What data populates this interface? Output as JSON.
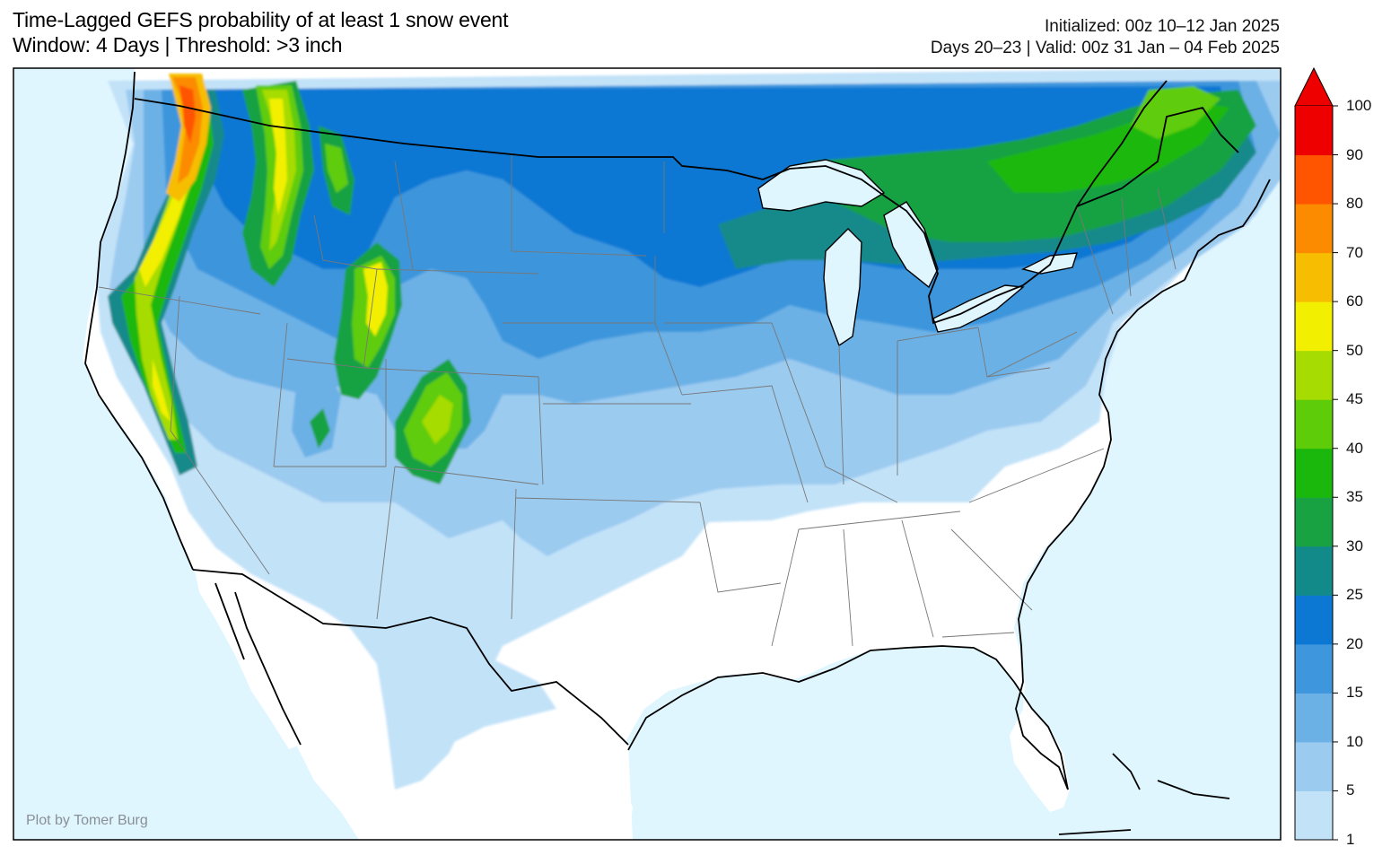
{
  "title": {
    "line1": "Time-Lagged GEFS probability of at least 1 snow event",
    "line2": "Window: 4 Days | Threshold: >3 inch"
  },
  "subtitle": {
    "initialized": "Initialized: 00z 10–12 Jan 2025",
    "valid": "Days 20–23 | Valid: 00z 31 Jan – 04 Feb 2025"
  },
  "credit": "Plot by Tomer Burg",
  "colors": {
    "ocean": "#e0f6ff",
    "land": "#ffffff",
    "boundary": "#000000",
    "state_line": "#777777"
  },
  "colorbar": {
    "ticks": [
      "1",
      "5",
      "10",
      "15",
      "20",
      "25",
      "30",
      "35",
      "40",
      "45",
      "50",
      "60",
      "70",
      "80",
      "90",
      "100"
    ],
    "bins": [
      {
        "range": "1-5",
        "color": "#c2e2f8"
      },
      {
        "range": "5-10",
        "color": "#9ccbf0"
      },
      {
        "range": "10-15",
        "color": "#6cb1e6"
      },
      {
        "range": "15-20",
        "color": "#3e96dc"
      },
      {
        "range": "20-25",
        "color": "#0c78d4"
      },
      {
        "range": "25-30",
        "color": "#128a8a"
      },
      {
        "range": "30-35",
        "color": "#18a242"
      },
      {
        "range": "35-40",
        "color": "#1ab80c"
      },
      {
        "range": "40-45",
        "color": "#5ecc08"
      },
      {
        "range": "45-50",
        "color": "#a6dc02"
      },
      {
        "range": "50-60",
        "color": "#f2f000"
      },
      {
        "range": "60-70",
        "color": "#f7bd00"
      },
      {
        "range": "70-80",
        "color": "#fc8b00"
      },
      {
        "range": "80-90",
        "color": "#ff5500"
      },
      {
        "range": "90-100",
        "color": "#ee0000"
      }
    ],
    "overflow_color": "#ee0000"
  }
}
